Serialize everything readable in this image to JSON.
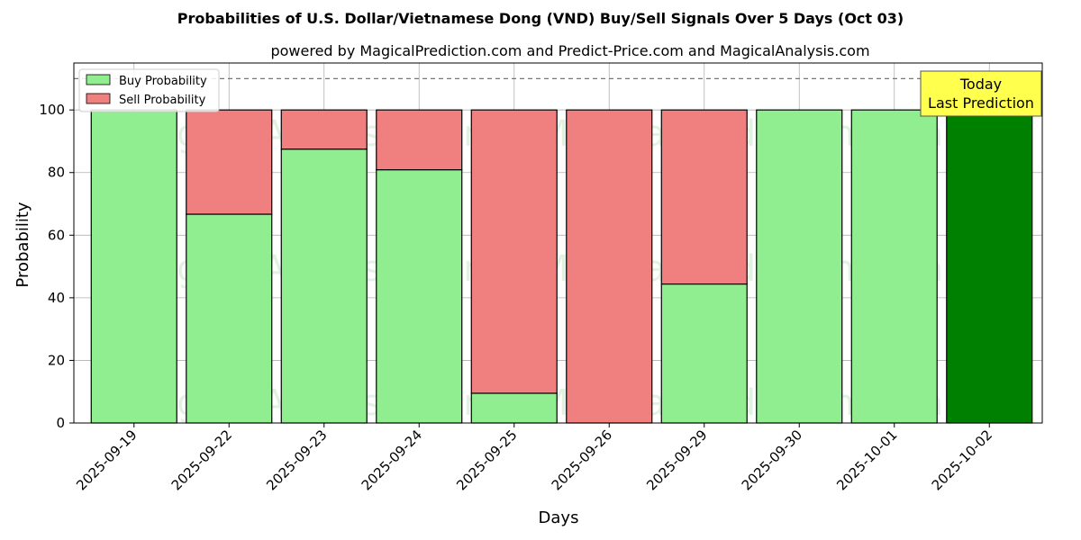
{
  "chart_data": {
    "type": "bar",
    "stacked": true,
    "title": "Probabilities of U.S. Dollar/Vietnamese Dong (VND) Buy/Sell Signals Over 5 Days (Oct 03)",
    "subtitle": "powered by MagicalPrediction.com and Predict-Price.com and MagicalAnalysis.com",
    "xlabel": "Days",
    "ylabel": "Probability",
    "ylim": [
      0,
      115
    ],
    "yticks": [
      0,
      20,
      40,
      60,
      80,
      100
    ],
    "grid": true,
    "legend_position": "top-left",
    "reference_line": {
      "y": 110,
      "style": "dashed"
    },
    "categories": [
      "2025-09-19",
      "2025-09-22",
      "2025-09-23",
      "2025-09-24",
      "2025-09-25",
      "2025-09-26",
      "2025-09-29",
      "2025-09-30",
      "2025-10-01",
      "2025-10-02"
    ],
    "series": [
      {
        "name": "Buy Probability",
        "values": [
          100,
          66.7,
          87.5,
          80.9,
          9.5,
          0,
          44.4,
          100,
          100,
          100
        ],
        "color": "#90ee90"
      },
      {
        "name": "Sell Probability",
        "values": [
          0,
          33.3,
          12.5,
          19.1,
          90.5,
          100,
          55.6,
          0,
          0,
          0
        ],
        "color": "#f08080"
      }
    ],
    "highlight": {
      "index": 9,
      "color": "#008000"
    },
    "annotation": {
      "lines": [
        "Today",
        "Last Prediction"
      ],
      "background": "#ffff4d"
    },
    "watermarks": [
      "MagicalAnalysis.com",
      "MagicalPrediction.com"
    ]
  }
}
